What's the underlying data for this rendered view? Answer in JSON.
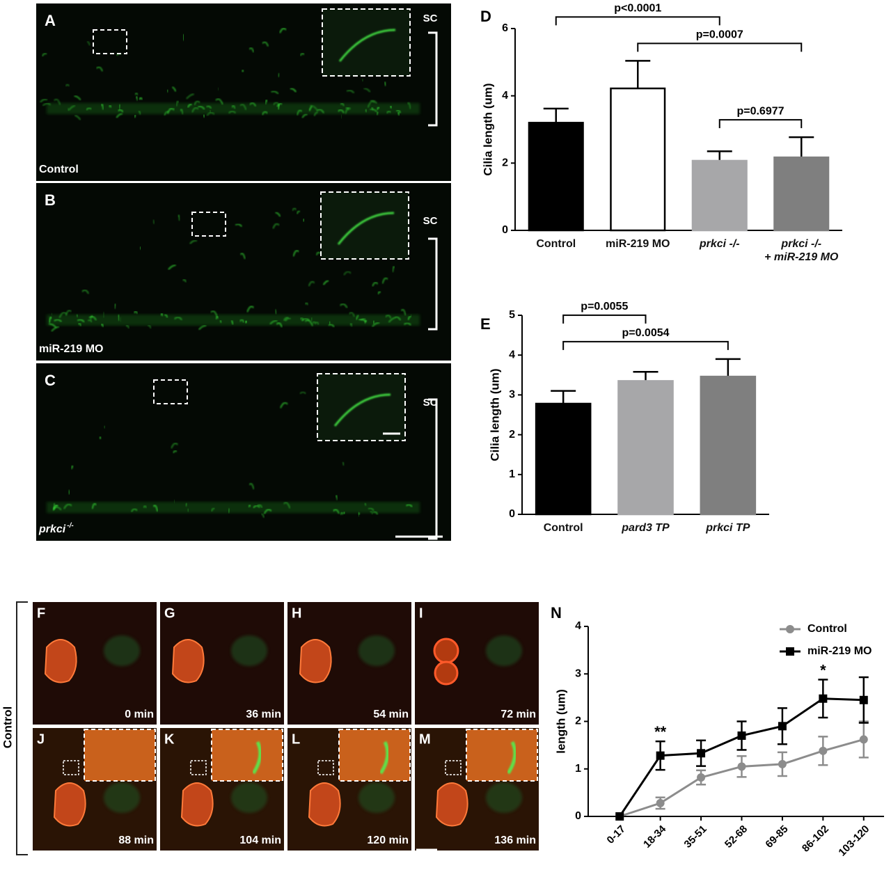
{
  "image_panels": [
    {
      "letter": "A",
      "label": "Control",
      "sc": "SC"
    },
    {
      "letter": "B",
      "label": "miR-219 MO",
      "sc": "SC"
    },
    {
      "letter": "C",
      "label": "prkci",
      "label_sup": "-/-",
      "sc": "SC"
    }
  ],
  "timelapse": {
    "group_label": "Control",
    "frames": [
      {
        "letter": "F",
        "time": "0 min"
      },
      {
        "letter": "G",
        "time": "36 min"
      },
      {
        "letter": "H",
        "time": "54 min"
      },
      {
        "letter": "I",
        "time": "72 min"
      },
      {
        "letter": "J",
        "time": "88 min"
      },
      {
        "letter": "K",
        "time": "104 min"
      },
      {
        "letter": "L",
        "time": "120 min"
      },
      {
        "letter": "M",
        "time": "136 min"
      }
    ]
  },
  "chart_data": [
    {
      "type": "bar",
      "panel": "D",
      "ylabel": "Cilia length (um)",
      "categories": [
        "Control",
        "miR-219 MO",
        "prkci -/-",
        "prkci -/-\n+ miR-219 MO"
      ],
      "values": [
        3.2,
        4.22,
        2.07,
        2.17
      ],
      "errors": [
        0.42,
        0.82,
        0.28,
        0.6
      ],
      "colors": [
        "#000000",
        "#ffffff",
        "#a7a7a9",
        "#7f7f7f"
      ],
      "edgecolors": [
        "#000000",
        "#000000",
        "#a7a7a9",
        "#7f7f7f"
      ],
      "ylim": [
        0,
        6
      ],
      "yticks": [
        0,
        2,
        4,
        6
      ],
      "comparisons": [
        {
          "label": "p<0.0001",
          "between": [
            0,
            2
          ]
        },
        {
          "label": "p=0.0007",
          "between": [
            1,
            3
          ]
        },
        {
          "label": "p=0.6977",
          "between": [
            2,
            3
          ]
        }
      ]
    },
    {
      "type": "bar",
      "panel": "E",
      "ylabel": "Cilia length (um)",
      "categories": [
        "Control",
        "pard3 TP",
        "prkci TP"
      ],
      "values": [
        2.78,
        3.35,
        3.46
      ],
      "errors": [
        0.32,
        0.23,
        0.44
      ],
      "colors": [
        "#000000",
        "#a7a7a9",
        "#7f7f7f"
      ],
      "edgecolors": [
        "#000000",
        "#a7a7a9",
        "#7f7f7f"
      ],
      "ylim": [
        0,
        5
      ],
      "yticks": [
        0,
        1,
        2,
        3,
        4,
        5
      ],
      "comparisons": [
        {
          "label": "p=0.0055",
          "between": [
            0,
            1
          ]
        },
        {
          "label": "p=0.0054",
          "between": [
            0,
            2
          ]
        }
      ]
    },
    {
      "type": "line",
      "panel": "N",
      "ylabel": "length (um)",
      "categories": [
        "0-17",
        "18-34",
        "35-51",
        "52-68",
        "69-85",
        "86-102",
        "103-120"
      ],
      "series": [
        {
          "name": "Control",
          "color": "#8c8c8c",
          "marker": "circle",
          "values": [
            0,
            0.28,
            0.82,
            1.05,
            1.1,
            1.38,
            1.62
          ],
          "errors": [
            0,
            0.12,
            0.15,
            0.22,
            0.25,
            0.3,
            0.38
          ]
        },
        {
          "name": "miR-219 MO",
          "color": "#000000",
          "marker": "square",
          "values": [
            0,
            1.28,
            1.33,
            1.7,
            1.9,
            2.48,
            2.45
          ],
          "errors": [
            0,
            0.3,
            0.27,
            0.3,
            0.38,
            0.4,
            0.48
          ]
        }
      ],
      "ylim": [
        0,
        4
      ],
      "yticks": [
        0,
        1,
        2,
        3,
        4
      ],
      "legend": "upper right",
      "annotations": [
        {
          "text": "**",
          "category": 1
        },
        {
          "text": "*",
          "category": 5
        }
      ]
    }
  ]
}
